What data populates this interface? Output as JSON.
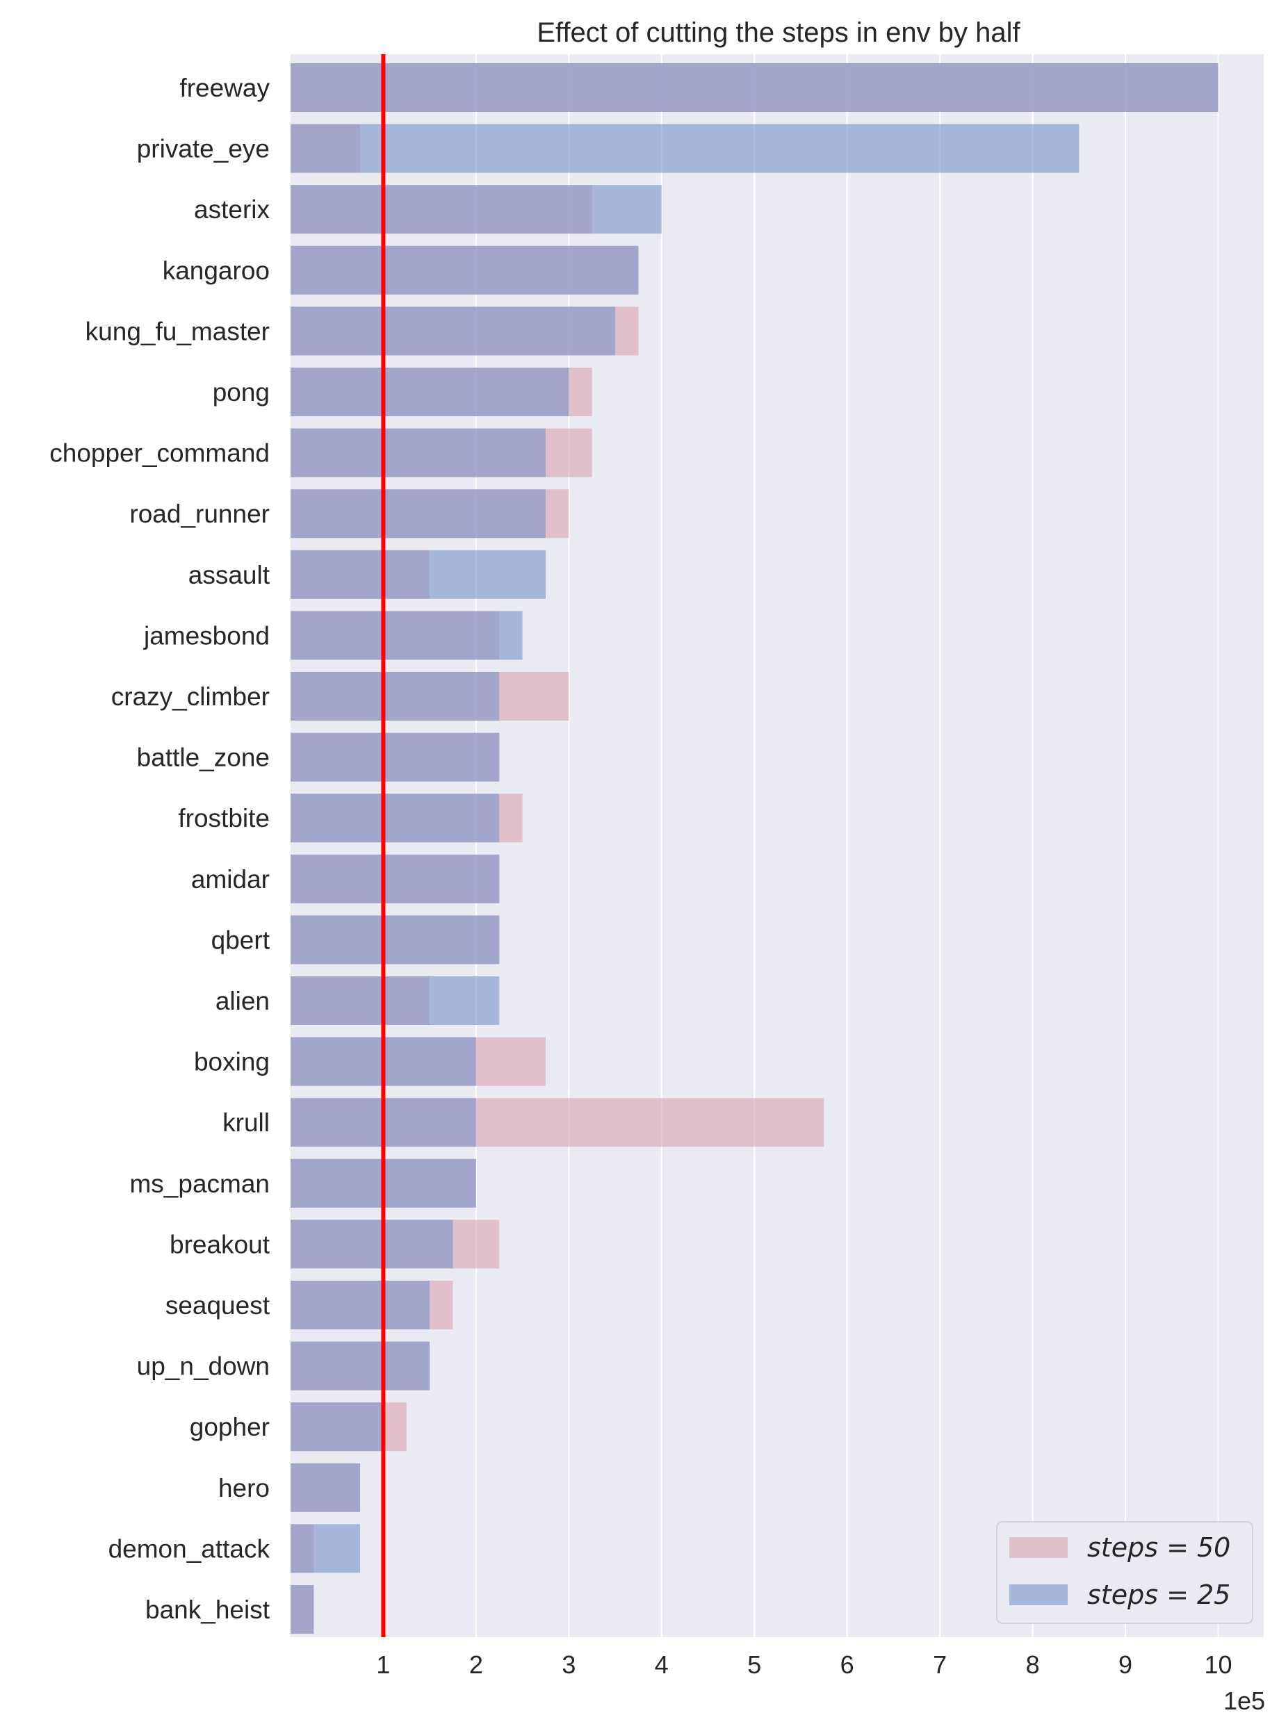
{
  "chart_data": {
    "type": "bar",
    "orientation": "horizontal",
    "title": "Effect of cutting the steps in env by half",
    "xlabel": "",
    "ylabel": "",
    "x_scale_note": "1e5",
    "xlim": [
      0,
      10.5
    ],
    "x_ticks": [
      1,
      2,
      3,
      4,
      5,
      6,
      7,
      8,
      9,
      10
    ],
    "grid": true,
    "legend_position": "bottom-right",
    "reference_line": {
      "x": 1,
      "color": "#ff0000"
    },
    "categories": [
      "freeway",
      "private_eye",
      "asterix",
      "kangaroo",
      "kung_fu_master",
      "pong",
      "chopper_command",
      "road_runner",
      "assault",
      "jamesbond",
      "crazy_climber",
      "battle_zone",
      "frostbite",
      "amidar",
      "qbert",
      "alien",
      "boxing",
      "krull",
      "ms_pacman",
      "breakout",
      "seaquest",
      "up_n_down",
      "gopher",
      "hero",
      "demon_attack",
      "bank_heist"
    ],
    "series": [
      {
        "name": "steps = 50",
        "legend_label": "steps = 50",
        "color": "#dca4b0",
        "values": [
          10,
          0.75,
          3.25,
          3.75,
          3.75,
          3.25,
          3.25,
          3.0,
          1.5,
          2.25,
          3.0,
          2.25,
          2.5,
          2.25,
          2.25,
          1.5,
          2.75,
          5.75,
          2.0,
          2.25,
          1.75,
          1.5,
          1.25,
          0.75,
          0.25,
          0.25
        ]
      },
      {
        "name": "steps = 25",
        "legend_label": "steps = 25",
        "color": "#7895cc",
        "values": [
          10,
          8.5,
          4.0,
          3.75,
          3.5,
          3.0,
          2.75,
          2.75,
          2.75,
          2.5,
          2.25,
          2.25,
          2.25,
          2.25,
          2.25,
          2.25,
          2.0,
          2.0,
          2.0,
          1.75,
          1.5,
          1.5,
          1.0,
          0.75,
          0.75,
          0.25
        ]
      }
    ]
  }
}
